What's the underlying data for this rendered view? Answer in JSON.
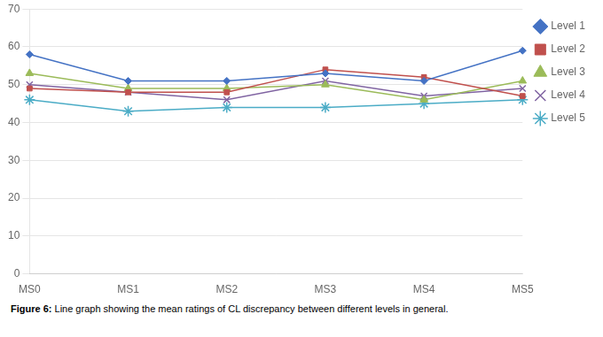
{
  "chart_data": {
    "type": "line",
    "categories": [
      "MS0",
      "MS1",
      "MS2",
      "MS3",
      "MS4",
      "MS5"
    ],
    "series": [
      {
        "name": "Level 1",
        "color": "#4472C4",
        "marker": "diamond",
        "values": [
          58,
          51,
          51,
          53,
          51,
          59
        ]
      },
      {
        "name": "Level 2",
        "color": "#C0504D",
        "marker": "square",
        "values": [
          49,
          48,
          48,
          54,
          52,
          47
        ]
      },
      {
        "name": "Level 3",
        "color": "#9BBB59",
        "marker": "triangle",
        "values": [
          53,
          49,
          49,
          50,
          46,
          51
        ]
      },
      {
        "name": "Level 4",
        "color": "#8064A2",
        "marker": "x",
        "values": [
          50,
          48,
          46,
          51,
          47,
          49
        ]
      },
      {
        "name": "Level 5",
        "color": "#4BACC6",
        "marker": "star",
        "values": [
          46,
          43,
          44,
          44,
          45,
          46
        ]
      }
    ],
    "ylim": [
      0,
      70
    ],
    "yticks": [
      0,
      10,
      20,
      30,
      40,
      50,
      60,
      70
    ],
    "grid": "y",
    "legend": "right",
    "annotations": [
      "Figure 6:",
      "Line graph showing the mean ratings of CL discrepancy between different levels in general."
    ]
  }
}
